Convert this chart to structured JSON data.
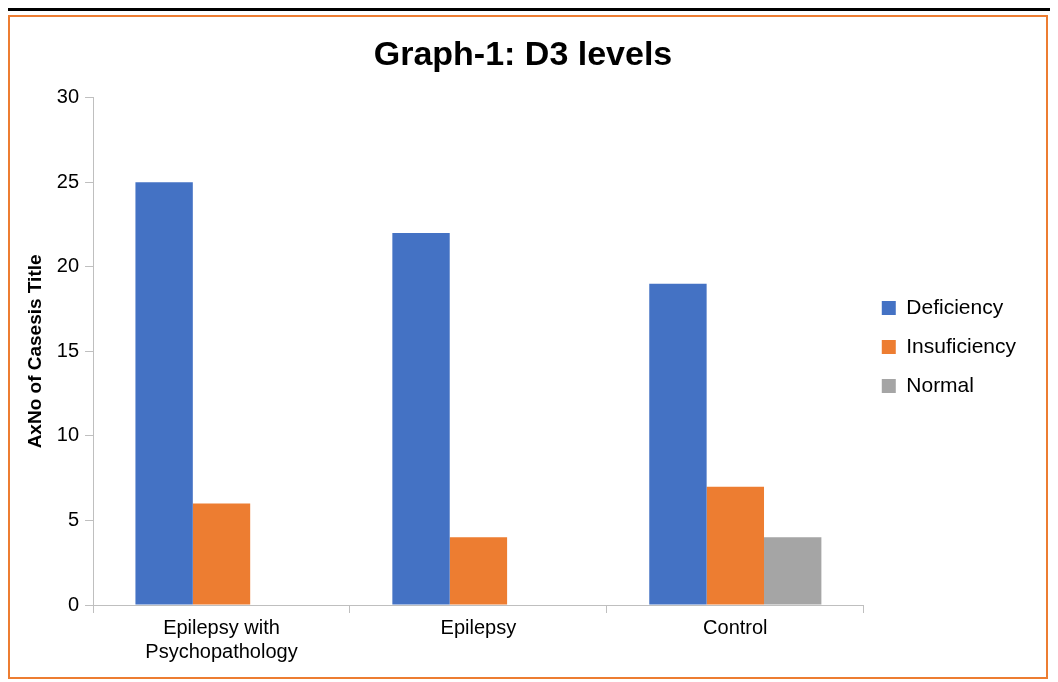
{
  "chart_data": {
    "type": "bar",
    "title": "Graph-1: D3 levels",
    "ylabel": "AxNo of Casesis Title",
    "categories": [
      "Epilepsy with Psychopathology",
      "Epilepsy",
      "Control"
    ],
    "series": [
      {
        "name": "Deficiency",
        "color": "#4472c4",
        "values": [
          25,
          22,
          19
        ]
      },
      {
        "name": "Insuficiency",
        "color": "#ed7d31",
        "values": [
          6,
          4,
          7
        ]
      },
      {
        "name": "Normal",
        "color": "#a5a5a5",
        "values": [
          null,
          null,
          4
        ]
      }
    ],
    "ylim": [
      0,
      30
    ],
    "yticks": [
      0,
      5,
      10,
      15,
      20,
      25,
      30
    ],
    "grid": false,
    "legend": "right"
  }
}
